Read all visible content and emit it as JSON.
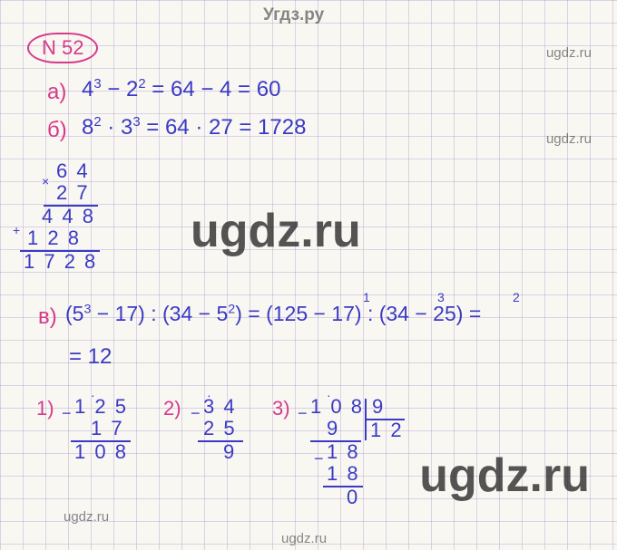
{
  "grid": {
    "cell": 25,
    "bg": "#f9f7f2",
    "line": "rgba(160,140,200,0.35)"
  },
  "watermarks": {
    "header": "Угдз.ру",
    "brand": "ugdz.ru"
  },
  "problem_number": "N 52",
  "colors": {
    "ink_pink": "#d63a8a",
    "ink_blue": "#3a3ac4"
  },
  "lines": {
    "a": {
      "label": "a)",
      "expr_html": "4<span class='supr'>3</span> − 2<span class='supr'>2</span> = 64 − 4 = 60"
    },
    "b": {
      "label": "б)",
      "expr_html": "8<span class='supr'>2</span> · 3<span class='supr'>3</span> = 64 · 27 = 1728"
    },
    "b_mult": {
      "x": "×",
      "r1": "6 4",
      "r2": "2 7",
      "p1": "4 4 8",
      "p2_plus": "+",
      "p2": "1 2 8",
      "res": "1 7 2 8"
    },
    "v": {
      "label": "в)",
      "expr_html": "(5<span class='supr'>3</span> − 17) : (34 − 5<span class='supr'>2</span>) = (125 − 17) : (34 − 25) =",
      "carry1": "1",
      "carry2": "3",
      "carry3": "2",
      "result": "= 12"
    },
    "work": {
      "s1": {
        "n": "1)",
        "minus": "−",
        "a": "1 2 5",
        "b": "1 7",
        "r": "1 0 8",
        "dot": "·"
      },
      "s2": {
        "n": "2)",
        "minus": "−",
        "a": "3 4",
        "b": "2 5",
        "r": "9",
        "dot": "·"
      },
      "s3": {
        "n": "3)",
        "minus": "−",
        "a": "1 0 8",
        "div": "9",
        "q": "1 2",
        "b1": "9",
        "c": "1 8",
        "b2": "1 8",
        "z": "0",
        "dot": "·"
      }
    }
  }
}
